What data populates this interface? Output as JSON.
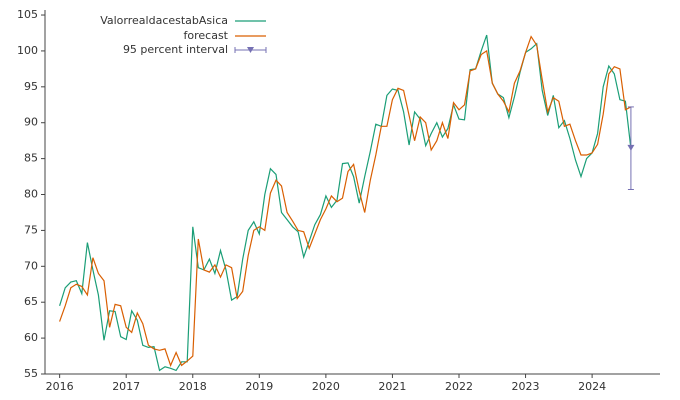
{
  "chart_data": {
    "type": "line",
    "x": [
      2016,
      2016.083,
      2016.167,
      2016.25,
      2016.333,
      2016.417,
      2016.5,
      2016.583,
      2016.667,
      2016.75,
      2016.833,
      2016.917,
      2017,
      2017.083,
      2017.167,
      2017.25,
      2017.333,
      2017.417,
      2017.5,
      2017.583,
      2017.667,
      2017.75,
      2017.833,
      2017.917,
      2018,
      2018.083,
      2018.167,
      2018.25,
      2018.333,
      2018.417,
      2018.5,
      2018.583,
      2018.667,
      2018.75,
      2018.833,
      2018.917,
      2019,
      2019.083,
      2019.167,
      2019.25,
      2019.333,
      2019.417,
      2019.5,
      2019.583,
      2019.667,
      2019.75,
      2019.833,
      2019.917,
      2020,
      2020.083,
      2020.167,
      2020.25,
      2020.333,
      2020.417,
      2020.5,
      2020.583,
      2020.667,
      2020.75,
      2020.833,
      2020.917,
      2021,
      2021.083,
      2021.167,
      2021.25,
      2021.333,
      2021.417,
      2021.5,
      2021.583,
      2021.667,
      2021.75,
      2021.833,
      2021.917,
      2022,
      2022.083,
      2022.167,
      2022.25,
      2022.333,
      2022.417,
      2022.5,
      2022.583,
      2022.667,
      2022.75,
      2022.833,
      2022.917,
      2023,
      2023.083,
      2023.167,
      2023.25,
      2023.333,
      2023.417,
      2023.5,
      2023.583,
      2023.667,
      2023.75,
      2023.833,
      2023.917,
      2024,
      2024.083,
      2024.167,
      2024.25,
      2024.333,
      2024.417,
      2024.5,
      2024.583
    ],
    "series": [
      {
        "name": "ValorrealdacestabAsica",
        "color": "#1b9e77",
        "values": [
          64.5,
          67,
          67.8,
          68,
          66.2,
          73.3,
          69.5,
          66,
          59.7,
          63.8,
          63.7,
          60.2,
          59.8,
          63.8,
          62.5,
          59,
          58.7,
          58.8,
          55.5,
          56,
          55.8,
          55.5,
          56.7,
          56.7,
          75.5,
          69.8,
          69.5,
          71,
          69,
          72.2,
          69.5,
          65.3,
          65.8,
          71,
          75,
          76.2,
          74.5,
          80,
          83.6,
          82.8,
          77.5,
          76.5,
          75.5,
          74.8,
          71.3,
          73.5,
          75.8,
          77.2,
          79.8,
          78.2,
          79.2,
          84.3,
          84.4,
          82.5,
          78.8,
          82.5,
          86,
          89.8,
          89.5,
          93.8,
          94.7,
          94.5,
          91.5,
          86.9,
          91.5,
          90.5,
          86.8,
          88.5,
          90,
          88,
          89.2,
          92.5,
          90.5,
          90.4,
          97.4,
          97.5,
          100,
          102.2,
          95.5,
          94,
          93.5,
          90.7,
          93.6,
          97,
          99.8,
          100.3,
          101,
          94.5,
          91,
          93.8,
          89.3,
          90.3,
          87.8,
          84.8,
          82.5,
          85,
          85.8,
          88.5,
          95,
          97.9,
          96.8,
          93.2,
          93,
          86.4
        ]
      },
      {
        "name": "forecast",
        "color": "#d95f02",
        "values": [
          62.3,
          64.5,
          67,
          67.5,
          67.2,
          66,
          71.2,
          69,
          68,
          61.5,
          64.7,
          64.5,
          61.5,
          60.8,
          63.5,
          62,
          59,
          58.5,
          58.3,
          58.5,
          56.2,
          58,
          56.2,
          56.8,
          57.5,
          73.8,
          69.5,
          69.2,
          70.2,
          68.5,
          70.2,
          69.8,
          65.5,
          66.5,
          71.5,
          75,
          75.5,
          75,
          80.2,
          82,
          81.2,
          77.5,
          76.3,
          75,
          74.8,
          72.5,
          74.5,
          76.5,
          78,
          79.8,
          79,
          79.5,
          83.2,
          84.2,
          80.5,
          77.5,
          82,
          85.5,
          89.5,
          89.5,
          93.2,
          94.8,
          94.5,
          91,
          87.5,
          90.8,
          90,
          86.2,
          87.5,
          90,
          87.8,
          92.8,
          91.8,
          92.5,
          97.2,
          97.5,
          99.5,
          100,
          95.5,
          94,
          93,
          91.5,
          95.5,
          97.2,
          99.8,
          102,
          100.8,
          96,
          91.5,
          93.5,
          93,
          89.5,
          89.8,
          87.5,
          85.5,
          85.5,
          85.8,
          87,
          91.2,
          96.8,
          97.8,
          97.5,
          91.8,
          92.2
        ]
      }
    ],
    "interval": {
      "name": "95 percent interval",
      "color": "#7570b3",
      "x": 2024.583,
      "value": 86.5,
      "lower": 80.7,
      "upper": 92.2
    },
    "xlim": [
      2015.78,
      2025.02
    ],
    "xticks": [
      2016,
      2017,
      2018,
      2019,
      2020,
      2021,
      2022,
      2023,
      2024
    ],
    "ylim": [
      55,
      105.7
    ],
    "yticks": [
      55,
      60,
      65,
      70,
      75,
      80,
      85,
      90,
      95,
      100,
      105
    ]
  }
}
